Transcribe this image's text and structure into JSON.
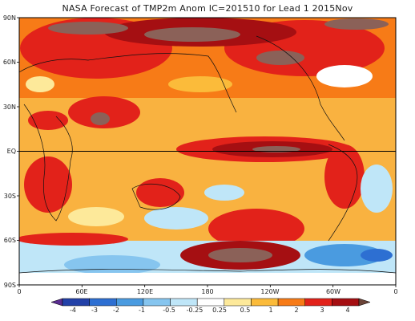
{
  "title": "NASA Forecast of TMP2m Anom IC=201510 for Lead 1 2015Nov",
  "map": {
    "y_axis_labels": [
      "90N",
      "60N",
      "30N",
      "EQ",
      "30S",
      "60S",
      "90S"
    ],
    "y_axis_values": [
      90,
      60,
      30,
      0,
      -30,
      -60,
      -90
    ],
    "x_axis_labels": [
      "0",
      "60E",
      "120E",
      "180",
      "120W",
      "60W",
      "0"
    ],
    "x_axis_values": [
      0,
      60,
      120,
      180,
      240,
      300,
      360
    ],
    "equator_line": true
  },
  "colorbar": {
    "labels": [
      "-4",
      "-3",
      "-2",
      "-1",
      "-0.5",
      "-0.25",
      "0.25",
      "0.5",
      "1",
      "2",
      "3",
      "4"
    ],
    "colors": [
      "#5a2d91",
      "#2241a8",
      "#2d6fd2",
      "#4a9be0",
      "#86c5ef",
      "#bfe6f8",
      "#ffffff",
      "#fde99a",
      "#fbbb3a",
      "#f77b17",
      "#e2221a",
      "#a50f12",
      "#6b4438"
    ],
    "arrows": true
  },
  "colors": {
    "background_field": "#f9b240",
    "equator_line": "#000000",
    "coastline": "#111111"
  }
}
